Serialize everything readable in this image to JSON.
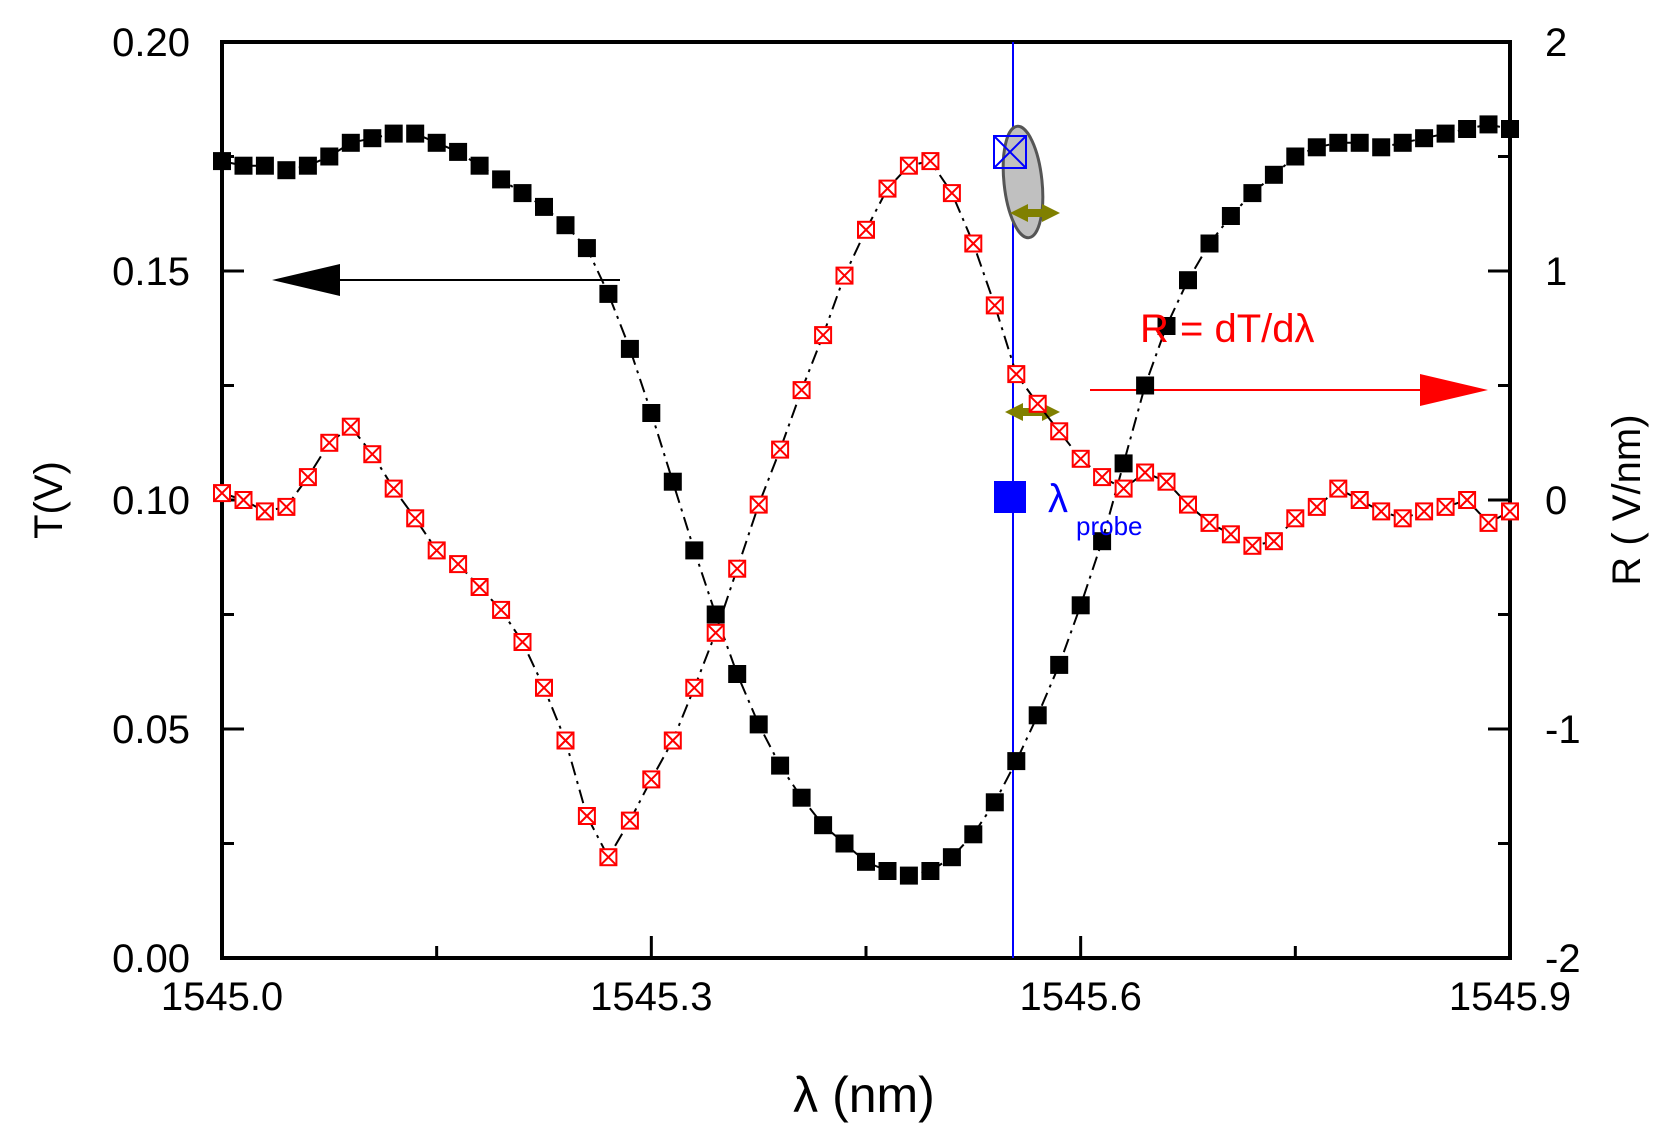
{
  "chart_data": {
    "type": "scatter",
    "title": "",
    "xlabel": "λ (nm)",
    "ylabel_left": "T(V)",
    "ylabel_right": "R ( V/nm)",
    "xlim": [
      1545.0,
      1545.9
    ],
    "ylim_left": [
      0.0,
      0.2
    ],
    "ylim_right": [
      -2,
      2
    ],
    "xticks": [
      "1545.0",
      "1545.3",
      "1545.6",
      "1545.9"
    ],
    "yticks_left": [
      "0.00",
      "0.05",
      "0.10",
      "0.15",
      "0.20"
    ],
    "yticks_right": [
      "-2",
      "-1",
      "0",
      "1",
      "2"
    ],
    "annotations": {
      "responsivity_label": "R = dT/dλ",
      "probe_label_main": "λ",
      "probe_label_sub": "probe",
      "probe_wavelength": 1545.553
    },
    "series": [
      {
        "name": "T",
        "axis": "left",
        "marker": "filled-square",
        "color": "#000000",
        "x": [
          1545.0,
          1545.015,
          1545.03,
          1545.045,
          1545.06,
          1545.075,
          1545.09,
          1545.105,
          1545.12,
          1545.135,
          1545.15,
          1545.165,
          1545.18,
          1545.195,
          1545.21,
          1545.225,
          1545.24,
          1545.255,
          1545.27,
          1545.285,
          1545.3,
          1545.315,
          1545.33,
          1545.345,
          1545.36,
          1545.375,
          1545.39,
          1545.405,
          1545.42,
          1545.435,
          1545.45,
          1545.465,
          1545.48,
          1545.495,
          1545.51,
          1545.525,
          1545.54,
          1545.555,
          1545.57,
          1545.585,
          1545.6,
          1545.615,
          1545.63,
          1545.645,
          1545.66,
          1545.675,
          1545.69,
          1545.705,
          1545.72,
          1545.735,
          1545.75,
          1545.765,
          1545.78,
          1545.795,
          1545.81,
          1545.825,
          1545.84,
          1545.855,
          1545.87,
          1545.885,
          1545.9
        ],
        "values": [
          0.174,
          0.173,
          0.173,
          0.172,
          0.173,
          0.175,
          0.178,
          0.179,
          0.18,
          0.18,
          0.178,
          0.176,
          0.173,
          0.17,
          0.167,
          0.164,
          0.16,
          0.155,
          0.145,
          0.133,
          0.119,
          0.104,
          0.089,
          0.075,
          0.062,
          0.051,
          0.042,
          0.035,
          0.029,
          0.025,
          0.021,
          0.019,
          0.018,
          0.019,
          0.022,
          0.027,
          0.034,
          0.043,
          0.053,
          0.064,
          0.077,
          0.091,
          0.108,
          0.125,
          0.138,
          0.148,
          0.156,
          0.162,
          0.167,
          0.171,
          0.175,
          0.177,
          0.178,
          0.178,
          0.177,
          0.178,
          0.179,
          0.18,
          0.181,
          0.182,
          0.181
        ]
      },
      {
        "name": "R = dT/dλ",
        "axis": "right",
        "marker": "boxed-x",
        "color": "#ff0000",
        "x": [
          1545.0,
          1545.015,
          1545.03,
          1545.045,
          1545.06,
          1545.075,
          1545.09,
          1545.105,
          1545.12,
          1545.135,
          1545.15,
          1545.165,
          1545.18,
          1545.195,
          1545.21,
          1545.225,
          1545.24,
          1545.255,
          1545.27,
          1545.285,
          1545.3,
          1545.315,
          1545.33,
          1545.345,
          1545.36,
          1545.375,
          1545.39,
          1545.405,
          1545.42,
          1545.435,
          1545.45,
          1545.465,
          1545.48,
          1545.495,
          1545.51,
          1545.525,
          1545.54,
          1545.555,
          1545.57,
          1545.585,
          1545.6,
          1545.615,
          1545.63,
          1545.645,
          1545.66,
          1545.675,
          1545.69,
          1545.705,
          1545.72,
          1545.735,
          1545.75,
          1545.765,
          1545.78,
          1545.795,
          1545.81,
          1545.825,
          1545.84,
          1545.855,
          1545.87,
          1545.885,
          1545.9
        ],
        "values": [
          0.03,
          0.0,
          -0.05,
          -0.03,
          0.1,
          0.25,
          0.32,
          0.2,
          0.05,
          -0.08,
          -0.22,
          -0.28,
          -0.38,
          -0.48,
          -0.62,
          -0.82,
          -1.05,
          -1.38,
          -1.56,
          -1.4,
          -1.22,
          -1.05,
          -0.82,
          -0.58,
          -0.3,
          -0.02,
          0.22,
          0.48,
          0.72,
          0.98,
          1.18,
          1.36,
          1.46,
          1.48,
          1.34,
          1.12,
          0.85,
          0.55,
          0.42,
          0.3,
          0.18,
          0.1,
          0.05,
          0.12,
          0.08,
          -0.02,
          -0.1,
          -0.15,
          -0.2,
          -0.18,
          -0.08,
          -0.03,
          0.05,
          0.0,
          -0.05,
          -0.08,
          -0.05,
          -0.03,
          0.0,
          -0.1,
          -0.05
        ]
      }
    ]
  }
}
